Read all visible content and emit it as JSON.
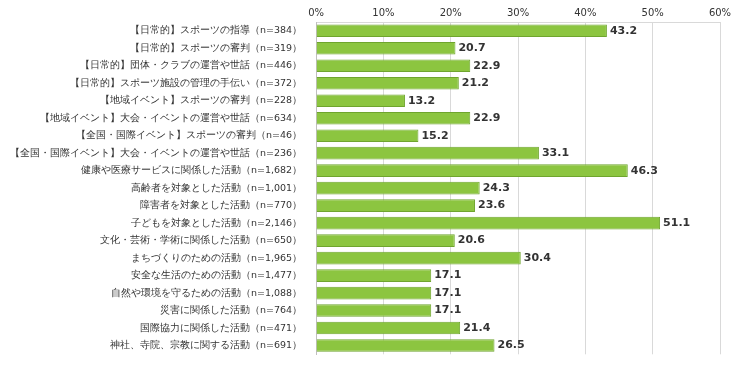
{
  "chart_data": {
    "type": "bar",
    "orientation": "horizontal",
    "categories": [
      "【日常的】スポーツの指導（n=384）",
      "【日常的】スポーツの審判（n=319）",
      "【日常的】団体・クラブの運営や世話（n=446）",
      "【日常的】スポーツ施設の管理の手伝い（n=372）",
      "【地域イベント】スポーツの審判（n=228）",
      "【地域イベント】大会・イベントの運営や世話（n=634）",
      "【全国・国際イベント】スポーツの審判（n=46）",
      "【全国・国際イベント】大会・イベントの運営や世話（n=236）",
      "健康や医療サービスに関係した活動（n=1,682）",
      "高齢者を対象とした活動（n=1,001）",
      "障害者を対象とした活動（n=770）",
      "子どもを対象とした活動（n=2,146）",
      "文化・芸術・学術に関係した活動（n=650）",
      "まちづくりのための活動（n=1,965）",
      "安全な生活のための活動（n=1,477）",
      "自然や環境を守るための活動（n=1,088）",
      "災害に関係した活動（n=764）",
      "国際協力に関係した活動（n=471）",
      "神社、寺院、宗教に関する活動（n=691）"
    ],
    "values": [
      43.2,
      20.7,
      22.9,
      21.2,
      13.2,
      22.9,
      15.2,
      33.1,
      46.3,
      24.3,
      23.6,
      51.1,
      20.6,
      30.4,
      17.1,
      17.1,
      17.1,
      21.4,
      26.5
    ],
    "color": "#8cc540",
    "xlim": [
      0,
      60
    ],
    "xticks": [
      {
        "value": 0,
        "label": "0%"
      },
      {
        "value": 10,
        "label": "10%"
      },
      {
        "value": 20,
        "label": "20%"
      },
      {
        "value": 30,
        "label": "30%"
      },
      {
        "value": 40,
        "label": "40%"
      },
      {
        "value": 50,
        "label": "50%"
      },
      {
        "value": 60,
        "label": "60%"
      }
    ],
    "grid": true,
    "data_labels": true
  }
}
